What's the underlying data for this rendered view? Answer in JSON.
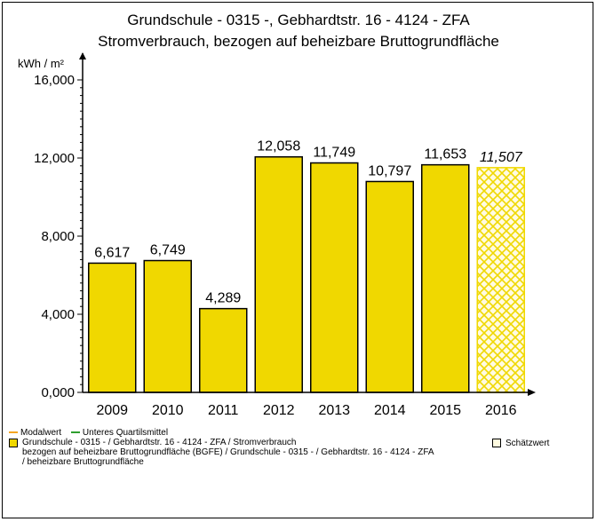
{
  "chart_data": {
    "type": "bar",
    "title": "Grundschule - 0315 -, Gebhardtstr. 16 - 4124 - ZFA",
    "subtitle": "Stromverbrauch, bezogen auf beheizbare Bruttogrundfläche",
    "ylabel": "kWh / m²",
    "xlabel": "",
    "ylim": [
      0,
      16000
    ],
    "yticks": [
      "0,000",
      "4,000",
      "8,000",
      "12,000",
      "16,000"
    ],
    "ytick_values": [
      0,
      4000,
      8000,
      12000,
      16000
    ],
    "categories": [
      "2009",
      "2010",
      "2011",
      "2012",
      "2013",
      "2014",
      "2015",
      "2016"
    ],
    "values": [
      6617,
      6749,
      4289,
      12058,
      11749,
      10797,
      11653,
      11507
    ],
    "value_labels": [
      "6,617",
      "6,749",
      "4,289",
      "12,058",
      "11,749",
      "10,797",
      "11,653",
      "11,507"
    ],
    "estimated": [
      false,
      false,
      false,
      false,
      false,
      false,
      false,
      true
    ],
    "grid": false,
    "bar_color": "#f0d800",
    "estimate_hatch_color": "#f0d800"
  },
  "legend": {
    "modalwert": "Modalwert",
    "modalwert_color": "#f5a623",
    "quartil": "Unteres Quartilsmittel",
    "quartil_color": "#2e9e2e",
    "series_line1": "Grundschule - 0315 - / Gebhardtstr. 16 - 4124 - ZFA / Stromverbrauch",
    "series_line2": "bezogen auf beheizbare Bruttogrundfläche (BGFE) / Grundschule - 0315 - / Gebhardtstr. 16 - 4124 - ZFA",
    "series_line3": "/ beheizbare Bruttogrundfläche",
    "estimate": "Schätzwert"
  }
}
